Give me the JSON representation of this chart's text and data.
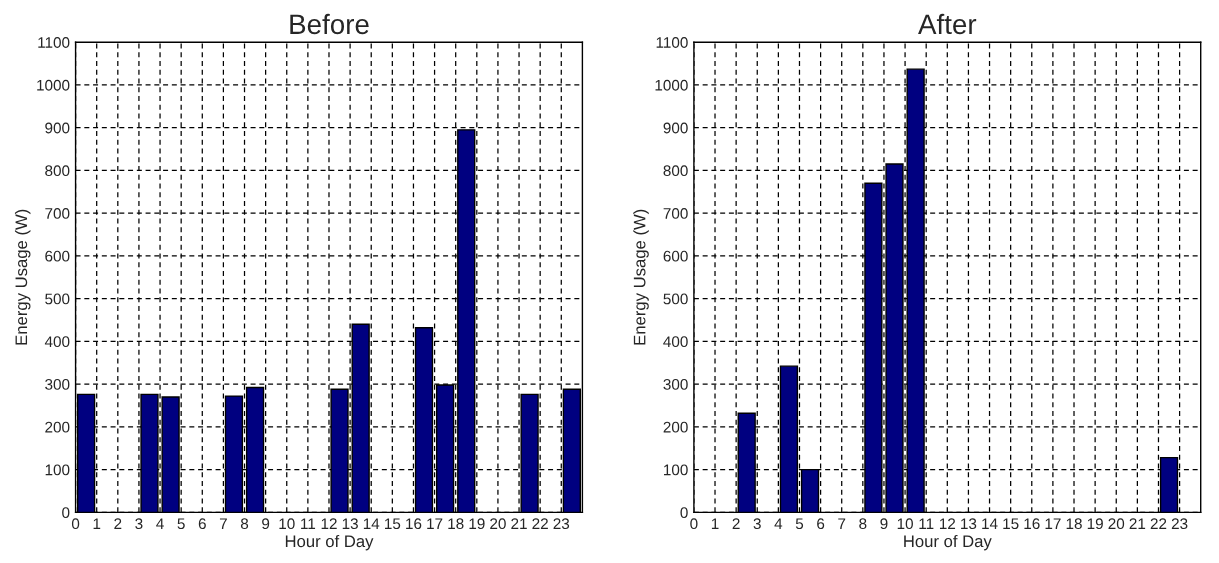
{
  "chart_data": [
    {
      "type": "bar",
      "title": "Before",
      "xlabel": "Hour of Day",
      "ylabel": "Energy Usage (W)",
      "x": [
        0.5,
        3.5,
        4.5,
        7.5,
        8.5,
        12.5,
        13.5,
        16.5,
        17.5,
        18.5,
        21.5,
        23.5
      ],
      "values": [
        276,
        276,
        270,
        272,
        292,
        288,
        440,
        432,
        298,
        895,
        276,
        288
      ],
      "color": "#000080",
      "xlim": [
        0,
        24
      ],
      "xticks": [
        0,
        1,
        2,
        3,
        4,
        5,
        6,
        7,
        8,
        9,
        10,
        11,
        12,
        13,
        14,
        15,
        16,
        17,
        18,
        19,
        20,
        21,
        22,
        23
      ],
      "ylim": [
        0,
        1100
      ],
      "yticks": [
        0,
        100,
        200,
        300,
        400,
        500,
        600,
        700,
        800,
        900,
        1000,
        1100
      ],
      "grid": true,
      "line_style": "dashed"
    },
    {
      "type": "bar",
      "title": "After",
      "xlabel": "Hour of Day",
      "ylabel": "Energy Usage (W)",
      "x": [
        2.5,
        4.5,
        5.5,
        8.5,
        9.5,
        10.5,
        22.5
      ],
      "values": [
        232,
        342,
        100,
        770,
        815,
        1037,
        128
      ],
      "color": "#000080",
      "xlim": [
        0,
        24
      ],
      "xticks": [
        0,
        1,
        2,
        3,
        4,
        5,
        6,
        7,
        8,
        9,
        10,
        11,
        12,
        13,
        14,
        15,
        16,
        17,
        18,
        19,
        20,
        21,
        22,
        23
      ],
      "ylim": [
        0,
        1100
      ],
      "yticks": [
        0,
        100,
        200,
        300,
        400,
        500,
        600,
        700,
        800,
        900,
        1000,
        1100
      ],
      "grid": true,
      "line_style": "dashed"
    }
  ]
}
